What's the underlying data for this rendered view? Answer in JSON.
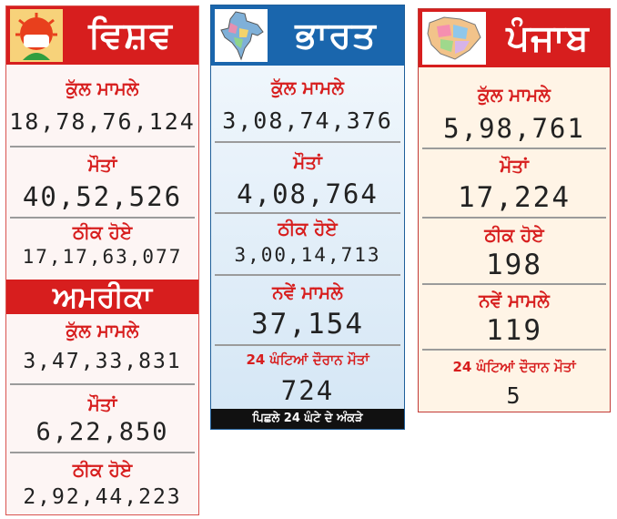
{
  "world": {
    "title": "ਵਿਸ਼ਵ",
    "total_label": "ਕੁੱਲ ਮਾਮਲੇ",
    "total": "18,78,76,124",
    "deaths_label": "ਮੌਤਾਂ",
    "deaths": "40,52,526",
    "recovered_label": "ਠੀਕ ਹੋਏ",
    "recovered": "17,17,63,077"
  },
  "usa": {
    "title": "ਅਮਰੀਕਾ",
    "total_label": "ਕੁੱਲ ਮਾਮਲੇ",
    "total": "3,47,33,831",
    "deaths_label": "ਮੌਤਾਂ",
    "deaths": "6,22,850",
    "recovered_label": "ਠੀਕ ਹੋਏ",
    "recovered": "2,92,44,223"
  },
  "india": {
    "title": "ਭਾਰਤ",
    "total_label": "ਕੁੱਲ ਮਾਮਲੇ",
    "total": "3,08,74,376",
    "deaths_label": "ਮੌਤਾਂ",
    "deaths": "4,08,764",
    "recovered_label": "ਠੀਕ ਹੋਏ",
    "recovered": "3,00,14,713",
    "new_label": "ਨਵੇਂ ਮਾਮਲੇ",
    "new": "37,154",
    "deaths24_label": "24 ਘੰਟਿਆਂ ਦੌਰਾਨ ਮੌਤਾਂ",
    "deaths24": "724",
    "footer": "ਪਿਛਲੇ 24 ਘੰਟੇ ਦੇ ਅੰਕੜੇ"
  },
  "punjab": {
    "title": "ਪੰਜਾਬ",
    "total_label": "ਕੁੱਲ ਮਾਮਲੇ",
    "total": "5,98,761",
    "deaths_label": "ਮੌਤਾਂ",
    "deaths": "17,224",
    "recovered_label": "ਠੀਕ ਹੋਏ",
    "recovered": "198",
    "new_label": "ਨਵੇਂ ਮਾਮਲੇ",
    "new": "119",
    "deaths24_label": "24 ਘੰਟਿਆਂ ਦੌਰਾਨ ਮੌਤਾਂ",
    "deaths24": "5"
  },
  "colors": {
    "red": "#d71e1e",
    "blue": "#1a66ad",
    "world_bg": "#fdf5f4",
    "india_bg": "#e3eff9",
    "punjab_bg": "#fff4e6",
    "footer_bg": "#111111"
  },
  "icons": {
    "world": "virus-mask-icon",
    "india": "india-map-icon",
    "punjab": "punjab-map-icon"
  }
}
